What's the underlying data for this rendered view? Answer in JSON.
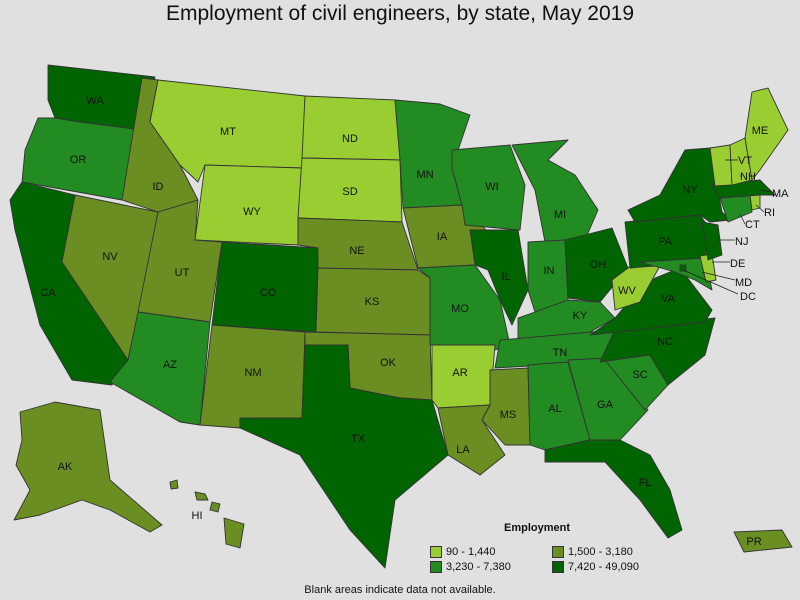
{
  "title": "Employment of civil engineers, by state, May 2019",
  "footnote": "Blank areas indicate data not available.",
  "legend": {
    "title": "Employment",
    "bins": [
      {
        "label": "90 - 1,440",
        "color": "#9acd32"
      },
      {
        "label": "1,500 - 3,180",
        "color": "#6b8e23"
      },
      {
        "label": "3,230 - 7,380",
        "color": "#228b22"
      },
      {
        "label": "7,420 - 49,090",
        "color": "#006400"
      }
    ]
  },
  "states": {
    "WA": 3,
    "OR": 2,
    "CA": 3,
    "NV": 1,
    "ID": 1,
    "MT": 0,
    "WY": 0,
    "UT": 1,
    "AZ": 2,
    "CO": 3,
    "NM": 1,
    "ND": 0,
    "SD": 0,
    "NE": 1,
    "KS": 1,
    "OK": 1,
    "TX": 3,
    "MN": 2,
    "IA": 1,
    "MO": 2,
    "AR": 0,
    "LA": 1,
    "WI": 2,
    "IL": 3,
    "MI": 2,
    "IN": 2,
    "KY": 2,
    "TN": 2,
    "MS": 1,
    "AL": 2,
    "OH": 3,
    "WV": 0,
    "PA": 3,
    "NY": 3,
    "VA": 3,
    "NC": 3,
    "SC": 2,
    "GA": 2,
    "FL": 3,
    "ME": 0,
    "VT": 0,
    "NH": 0,
    "MA": 3,
    "RI": 0,
    "CT": 2,
    "NJ": 3,
    "DE": 0,
    "MD": 2,
    "DC": 3,
    "AK": 1,
    "HI": 1,
    "PR": 1
  }
}
